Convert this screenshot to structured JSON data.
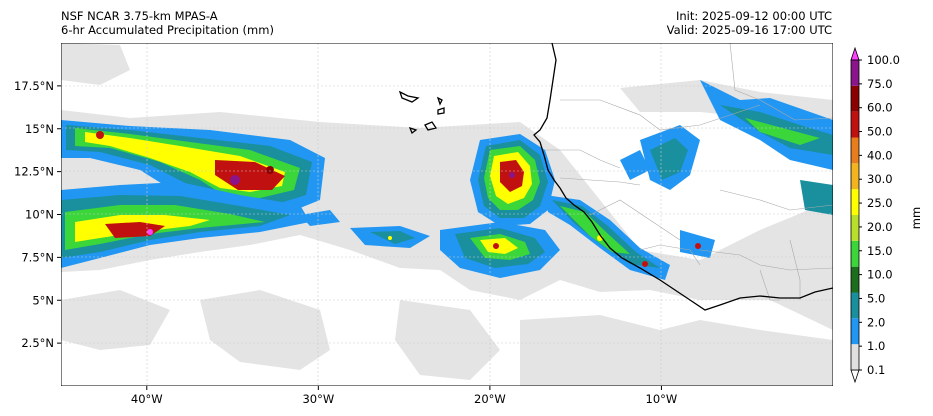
{
  "header": {
    "model": "NSF NCAR 3.75-km MPAS-A",
    "field": "6-hr Accumulated Precipitation (mm)",
    "init": "Init: 2025-09-12 00:00 UTC",
    "valid": "Valid: 2025-09-16 17:00 UTC"
  },
  "map": {
    "lon_range": [
      -45,
      0
    ],
    "lat_range": [
      0,
      20
    ],
    "lon_ticks": [
      {
        "value": -40,
        "label": "40°W"
      },
      {
        "value": -30,
        "label": "30°W"
      },
      {
        "value": -20,
        "label": "20°W"
      },
      {
        "value": -10,
        "label": "10°W"
      }
    ],
    "lat_ticks": [
      {
        "value": 2.5,
        "label": "2.5°N"
      },
      {
        "value": 5,
        "label": "5°N"
      },
      {
        "value": 7.5,
        "label": "7.5°N"
      },
      {
        "value": 10,
        "label": "10°N"
      },
      {
        "value": 12.5,
        "label": "12.5°N"
      },
      {
        "value": 15,
        "label": "15°N"
      },
      {
        "value": 17.5,
        "label": "17.5°N"
      }
    ]
  },
  "colorbar": {
    "unit": "mm",
    "levels": [
      "0.1",
      "1.0",
      "2.0",
      "5.0",
      "10.0",
      "15.0",
      "20.0",
      "25.0",
      "30.0",
      "40.0",
      "50.0",
      "60.0",
      "75.0",
      "100.0"
    ],
    "colors": [
      "#ffffff",
      "#e0e0e0",
      "#2196f3",
      "#1a8f9e",
      "#1b6e1b",
      "#3ad63a",
      "#b8e02a",
      "#ffff00",
      "#f2b51e",
      "#e87d1b",
      "#c01010",
      "#8b0000",
      "#8a148a",
      "#ff40ff"
    ]
  }
}
